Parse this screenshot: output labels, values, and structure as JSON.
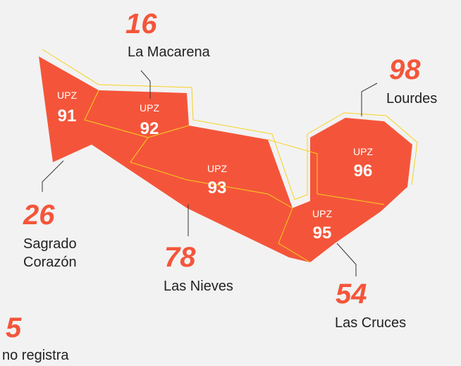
{
  "upz": [
    {
      "prefix": "UPZ",
      "code": "91"
    },
    {
      "prefix": "UPZ",
      "code": "92"
    },
    {
      "prefix": "UPZ",
      "code": "93"
    },
    {
      "prefix": "UPZ",
      "code": "95"
    },
    {
      "prefix": "UPZ",
      "code": "96"
    }
  ],
  "annotations": [
    {
      "value": 16,
      "name": [
        "La Macarena"
      ]
    },
    {
      "value": 98,
      "name": [
        "Lourdes"
      ]
    },
    {
      "value": 26,
      "name": [
        "Sagrado",
        "Corazón"
      ]
    },
    {
      "value": 78,
      "name": [
        "Las Nieves"
      ]
    },
    {
      "value": 54,
      "name": [
        "Las Cruces"
      ]
    },
    {
      "value": 5,
      "name": [
        "no registra"
      ]
    }
  ]
}
